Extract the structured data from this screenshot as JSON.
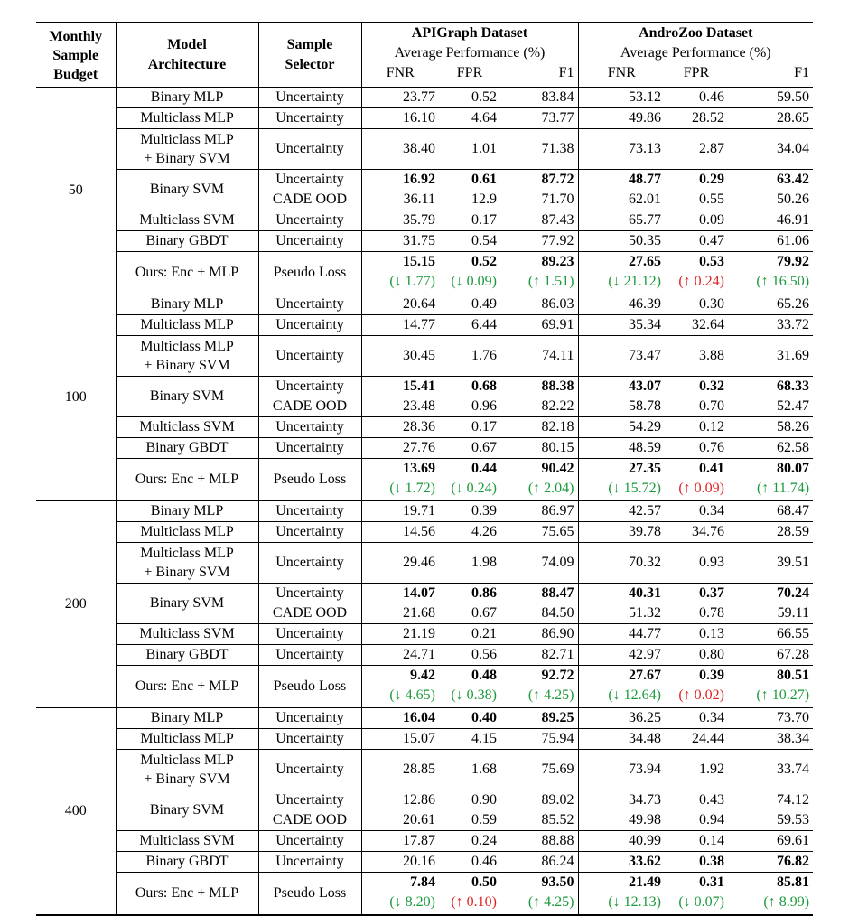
{
  "header": {
    "budget": "Monthly\nSample\nBudget",
    "arch": "Model\nArchitecture",
    "selector": "Sample\nSelector",
    "datasets": [
      {
        "name": "APIGraph Dataset",
        "sub": "Average Performance (%)"
      },
      {
        "name": "AndroZoo Dataset",
        "sub": "Average Performance (%)"
      }
    ],
    "metrics": [
      "FNR",
      "FPR",
      "F1"
    ]
  },
  "groups": [
    {
      "budget": "50",
      "rows": [
        {
          "arch": "Binary MLP",
          "sel": [
            "Uncertainty"
          ],
          "vals": [
            [
              "23.77",
              "0.52",
              "83.84",
              "53.12",
              "0.46",
              "59.50"
            ]
          ],
          "bold": [
            [
              0,
              0,
              0,
              0,
              0,
              0
            ]
          ]
        },
        {
          "arch": "Multiclass MLP",
          "sel": [
            "Uncertainty"
          ],
          "vals": [
            [
              "16.10",
              "4.64",
              "73.77",
              "49.86",
              "28.52",
              "28.65"
            ]
          ],
          "bold": [
            [
              0,
              0,
              0,
              0,
              0,
              0
            ]
          ]
        },
        {
          "arch": "Multiclass MLP\n+ Binary SVM",
          "sel": [
            "Uncertainty"
          ],
          "vals": [
            [
              "38.40",
              "1.01",
              "71.38",
              "73.13",
              "2.87",
              "34.04"
            ]
          ],
          "bold": [
            [
              0,
              0,
              0,
              0,
              0,
              0
            ]
          ]
        },
        {
          "arch": "Binary SVM",
          "sel": [
            "Uncertainty",
            "CADE OOD"
          ],
          "vals": [
            [
              "16.92",
              "0.61",
              "87.72",
              "48.77",
              "0.29",
              "63.42"
            ],
            [
              "36.11",
              "12.9",
              "71.70",
              "62.01",
              "0.55",
              "50.26"
            ]
          ],
          "bold": [
            [
              1,
              1,
              1,
              1,
              1,
              1
            ],
            [
              0,
              0,
              0,
              0,
              0,
              0
            ]
          ]
        },
        {
          "arch": "Multiclass SVM",
          "sel": [
            "Uncertainty"
          ],
          "vals": [
            [
              "35.79",
              "0.17",
              "87.43",
              "65.77",
              "0.09",
              "46.91"
            ]
          ],
          "bold": [
            [
              0,
              0,
              0,
              0,
              0,
              0
            ]
          ]
        },
        {
          "arch": "Binary GBDT",
          "sel": [
            "Uncertainty"
          ],
          "vals": [
            [
              "31.75",
              "0.54",
              "77.92",
              "50.35",
              "0.47",
              "61.06"
            ]
          ],
          "bold": [
            [
              0,
              0,
              0,
              0,
              0,
              0
            ]
          ]
        }
      ],
      "ours": {
        "arch": "Ours: Enc + MLP",
        "sel": "Pseudo Loss",
        "vals": [
          "15.15",
          "0.52",
          "89.23",
          "27.65",
          "0.53",
          "79.92"
        ],
        "deltas": [
          {
            "t": "(↓ 1.77)",
            "c": "green"
          },
          {
            "t": "(↓ 0.09)",
            "c": "green"
          },
          {
            "t": "(↑ 1.51)",
            "c": "green"
          },
          {
            "t": "(↓ 21.12)",
            "c": "green"
          },
          {
            "t": "(↑ 0.24)",
            "c": "red"
          },
          {
            "t": "(↑ 16.50)",
            "c": "green"
          }
        ]
      }
    },
    {
      "budget": "100",
      "rows": [
        {
          "arch": "Binary MLP",
          "sel": [
            "Uncertainty"
          ],
          "vals": [
            [
              "20.64",
              "0.49",
              "86.03",
              "46.39",
              "0.30",
              "65.26"
            ]
          ],
          "bold": [
            [
              0,
              0,
              0,
              0,
              0,
              0
            ]
          ]
        },
        {
          "arch": "Multiclass MLP",
          "sel": [
            "Uncertainty"
          ],
          "vals": [
            [
              "14.77",
              "6.44",
              "69.91",
              "35.34",
              "32.64",
              "33.72"
            ]
          ],
          "bold": [
            [
              0,
              0,
              0,
              0,
              0,
              0
            ]
          ]
        },
        {
          "arch": "Multiclass MLP\n+ Binary SVM",
          "sel": [
            "Uncertainty"
          ],
          "vals": [
            [
              "30.45",
              "1.76",
              "74.11",
              "73.47",
              "3.88",
              "31.69"
            ]
          ],
          "bold": [
            [
              0,
              0,
              0,
              0,
              0,
              0
            ]
          ]
        },
        {
          "arch": "Binary SVM",
          "sel": [
            "Uncertainty",
            "CADE OOD"
          ],
          "vals": [
            [
              "15.41",
              "0.68",
              "88.38",
              "43.07",
              "0.32",
              "68.33"
            ],
            [
              "23.48",
              "0.96",
              "82.22",
              "58.78",
              "0.70",
              "52.47"
            ]
          ],
          "bold": [
            [
              1,
              1,
              1,
              1,
              1,
              1
            ],
            [
              0,
              0,
              0,
              0,
              0,
              0
            ]
          ]
        },
        {
          "arch": "Multiclass SVM",
          "sel": [
            "Uncertainty"
          ],
          "vals": [
            [
              "28.36",
              "0.17",
              "82.18",
              "54.29",
              "0.12",
              "58.26"
            ]
          ],
          "bold": [
            [
              0,
              0,
              0,
              0,
              0,
              0
            ]
          ]
        },
        {
          "arch": "Binary GBDT",
          "sel": [
            "Uncertainty"
          ],
          "vals": [
            [
              "27.76",
              "0.67",
              "80.15",
              "48.59",
              "0.76",
              "62.58"
            ]
          ],
          "bold": [
            [
              0,
              0,
              0,
              0,
              0,
              0
            ]
          ]
        }
      ],
      "ours": {
        "arch": "Ours: Enc + MLP",
        "sel": "Pseudo Loss",
        "vals": [
          "13.69",
          "0.44",
          "90.42",
          "27.35",
          "0.41",
          "80.07"
        ],
        "deltas": [
          {
            "t": "(↓ 1.72)",
            "c": "green"
          },
          {
            "t": "(↓ 0.24)",
            "c": "green"
          },
          {
            "t": "(↑ 2.04)",
            "c": "green"
          },
          {
            "t": "(↓ 15.72)",
            "c": "green"
          },
          {
            "t": "(↑ 0.09)",
            "c": "red"
          },
          {
            "t": "(↑ 11.74)",
            "c": "green"
          }
        ]
      }
    },
    {
      "budget": "200",
      "rows": [
        {
          "arch": "Binary MLP",
          "sel": [
            "Uncertainty"
          ],
          "vals": [
            [
              "19.71",
              "0.39",
              "86.97",
              "42.57",
              "0.34",
              "68.47"
            ]
          ],
          "bold": [
            [
              0,
              0,
              0,
              0,
              0,
              0
            ]
          ]
        },
        {
          "arch": "Multiclass MLP",
          "sel": [
            "Uncertainty"
          ],
          "vals": [
            [
              "14.56",
              "4.26",
              "75.65",
              "39.78",
              "34.76",
              "28.59"
            ]
          ],
          "bold": [
            [
              0,
              0,
              0,
              0,
              0,
              0
            ]
          ]
        },
        {
          "arch": "Multiclass MLP\n+ Binary SVM",
          "sel": [
            "Uncertainty"
          ],
          "vals": [
            [
              "29.46",
              "1.98",
              "74.09",
              "70.32",
              "0.93",
              "39.51"
            ]
          ],
          "bold": [
            [
              0,
              0,
              0,
              0,
              0,
              0
            ]
          ]
        },
        {
          "arch": "Binary SVM",
          "sel": [
            "Uncertainty",
            "CADE OOD"
          ],
          "vals": [
            [
              "14.07",
              "0.86",
              "88.47",
              "40.31",
              "0.37",
              "70.24"
            ],
            [
              "21.68",
              "0.67",
              "84.50",
              "51.32",
              "0.78",
              "59.11"
            ]
          ],
          "bold": [
            [
              1,
              1,
              1,
              1,
              1,
              1
            ],
            [
              0,
              0,
              0,
              0,
              0,
              0
            ]
          ]
        },
        {
          "arch": "Multiclass SVM",
          "sel": [
            "Uncertainty"
          ],
          "vals": [
            [
              "21.19",
              "0.21",
              "86.90",
              "44.77",
              "0.13",
              "66.55"
            ]
          ],
          "bold": [
            [
              0,
              0,
              0,
              0,
              0,
              0
            ]
          ]
        },
        {
          "arch": "Binary GBDT",
          "sel": [
            "Uncertainty"
          ],
          "vals": [
            [
              "24.71",
              "0.56",
              "82.71",
              "42.97",
              "0.80",
              "67.28"
            ]
          ],
          "bold": [
            [
              0,
              0,
              0,
              0,
              0,
              0
            ]
          ]
        }
      ],
      "ours": {
        "arch": "Ours: Enc + MLP",
        "sel": "Pseudo Loss",
        "vals": [
          "9.42",
          "0.48",
          "92.72",
          "27.67",
          "0.39",
          "80.51"
        ],
        "deltas": [
          {
            "t": "(↓ 4.65)",
            "c": "green"
          },
          {
            "t": "(↓ 0.38)",
            "c": "green"
          },
          {
            "t": "(↑ 4.25)",
            "c": "green"
          },
          {
            "t": "(↓ 12.64)",
            "c": "green"
          },
          {
            "t": "(↑ 0.02)",
            "c": "red"
          },
          {
            "t": "(↑ 10.27)",
            "c": "green"
          }
        ]
      }
    },
    {
      "budget": "400",
      "rows": [
        {
          "arch": "Binary MLP",
          "sel": [
            "Uncertainty"
          ],
          "vals": [
            [
              "16.04",
              "0.40",
              "89.25",
              "36.25",
              "0.34",
              "73.70"
            ]
          ],
          "bold": [
            [
              1,
              1,
              1,
              0,
              0,
              0
            ]
          ]
        },
        {
          "arch": "Multiclass MLP",
          "sel": [
            "Uncertainty"
          ],
          "vals": [
            [
              "15.07",
              "4.15",
              "75.94",
              "34.48",
              "24.44",
              "38.34"
            ]
          ],
          "bold": [
            [
              0,
              0,
              0,
              0,
              0,
              0
            ]
          ]
        },
        {
          "arch": "Multiclass MLP\n+ Binary SVM",
          "sel": [
            "Uncertainty"
          ],
          "vals": [
            [
              "28.85",
              "1.68",
              "75.69",
              "73.94",
              "1.92",
              "33.74"
            ]
          ],
          "bold": [
            [
              0,
              0,
              0,
              0,
              0,
              0
            ]
          ]
        },
        {
          "arch": "Binary SVM",
          "sel": [
            "Uncertainty",
            "CADE OOD"
          ],
          "vals": [
            [
              "12.86",
              "0.90",
              "89.02",
              "34.73",
              "0.43",
              "74.12"
            ],
            [
              "20.61",
              "0.59",
              "85.52",
              "49.98",
              "0.94",
              "59.53"
            ]
          ],
          "bold": [
            [
              0,
              0,
              0,
              0,
              0,
              0
            ],
            [
              0,
              0,
              0,
              0,
              0,
              0
            ]
          ]
        },
        {
          "arch": "Multiclass SVM",
          "sel": [
            "Uncertainty"
          ],
          "vals": [
            [
              "17.87",
              "0.24",
              "88.88",
              "40.99",
              "0.14",
              "69.61"
            ]
          ],
          "bold": [
            [
              0,
              0,
              0,
              0,
              0,
              0
            ]
          ]
        },
        {
          "arch": "Binary GBDT",
          "sel": [
            "Uncertainty"
          ],
          "vals": [
            [
              "20.16",
              "0.46",
              "86.24",
              "33.62",
              "0.38",
              "76.82"
            ]
          ],
          "bold": [
            [
              0,
              0,
              0,
              1,
              1,
              1
            ]
          ]
        }
      ],
      "ours": {
        "arch": "Ours: Enc + MLP",
        "sel": "Pseudo Loss",
        "vals": [
          "7.84",
          "0.50",
          "93.50",
          "21.49",
          "0.31",
          "85.81"
        ],
        "deltas": [
          {
            "t": "(↓ 8.20)",
            "c": "green"
          },
          {
            "t": "(↑ 0.10)",
            "c": "red"
          },
          {
            "t": "(↑ 4.25)",
            "c": "green"
          },
          {
            "t": "(↓ 12.13)",
            "c": "green"
          },
          {
            "t": "(↓ 0.07)",
            "c": "green"
          },
          {
            "t": "(↑ 8.99)",
            "c": "green"
          }
        ]
      }
    }
  ]
}
